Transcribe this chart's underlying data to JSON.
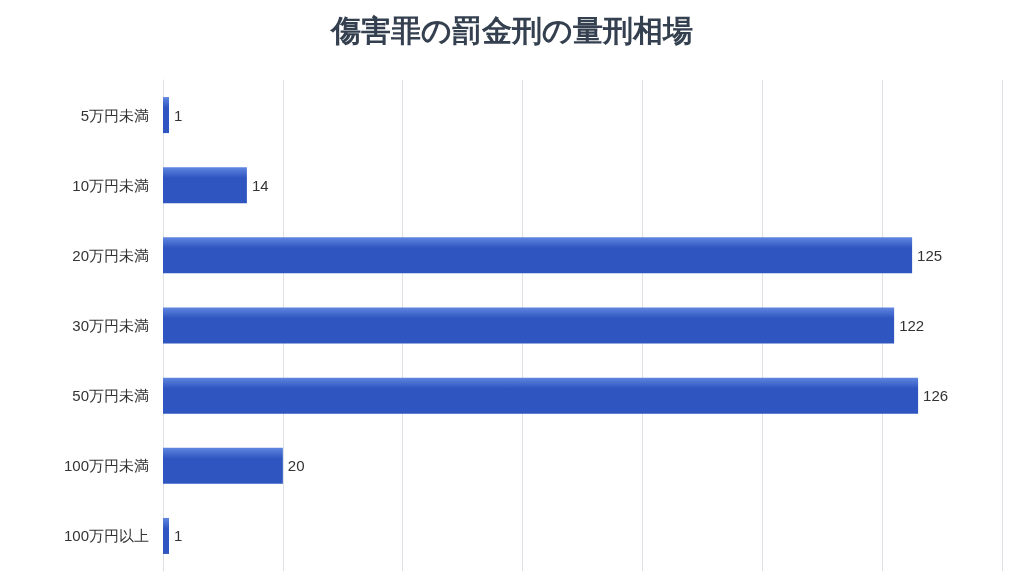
{
  "chart_data": {
    "type": "bar",
    "title": "傷害罪の罰金刑の量刑相場",
    "orientation": "horizontal",
    "categories": [
      "5万円未満",
      "10万円未満",
      "20万円未満",
      "30万円未満",
      "50万円未満",
      "100万円未満",
      "100万円以上"
    ],
    "values": [
      1,
      14,
      125,
      122,
      126,
      20,
      1
    ],
    "color": "#2f55c0",
    "xlim": [
      0,
      140
    ],
    "xticks": [
      {
        "value": 0,
        "label": null
      },
      {
        "value": 20,
        "label": null
      },
      {
        "value": 40,
        "label": null
      },
      {
        "value": 60,
        "label": null
      },
      {
        "value": 80,
        "label": null
      },
      {
        "value": 100,
        "label": null
      },
      {
        "value": 120,
        "label": null
      },
      {
        "value": 140,
        "label": null
      }
    ],
    "tick_labels": "y",
    "grid": "x",
    "data_labels": true
  }
}
